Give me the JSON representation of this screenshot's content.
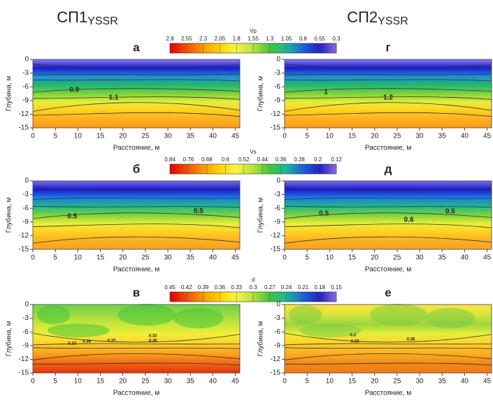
{
  "figure": {
    "column_titles": [
      {
        "main": "СП1",
        "sub": "YSSR"
      },
      {
        "main": "СП2",
        "sub": "YSSR"
      }
    ],
    "colorbars": [
      {
        "label": "Vp",
        "ticks": [
          2.8,
          2.55,
          2.3,
          2.05,
          1.8,
          1.55,
          1.3,
          1.05,
          0.8,
          0.55,
          0.3
        ]
      },
      {
        "label": "Vs",
        "ticks": [
          0.84,
          0.76,
          0.68,
          0.6,
          0.52,
          0.44,
          0.36,
          0.28,
          0.2,
          0.12
        ]
      },
      {
        "label": "d",
        "ticks": [
          0.45,
          0.42,
          0.39,
          0.36,
          0.33,
          0.3,
          0.27,
          0.24,
          0.21,
          0.18,
          0.15
        ]
      }
    ]
  },
  "chart_data": [
    {
      "type": "contour",
      "title": "а",
      "field": "Vp",
      "xlabel": "Расстояние, м",
      "ylabel": "Глубина, м",
      "xlim": [
        0,
        46
      ],
      "xticks": [
        0,
        5,
        10,
        15,
        20,
        25,
        30,
        35,
        40,
        45
      ],
      "ylim": [
        -15,
        0
      ],
      "yticks": [
        0,
        -3,
        -6,
        -9,
        -12,
        -15
      ],
      "contour_labels": [
        0.9,
        1.1
      ]
    },
    {
      "type": "contour",
      "title": "г",
      "field": "Vp",
      "xlabel": "Расстояние, м",
      "ylabel": "Глубина, м",
      "xlim": [
        0,
        46
      ],
      "xticks": [
        0,
        5,
        10,
        15,
        20,
        25,
        30,
        35,
        40,
        45
      ],
      "ylim": [
        -15,
        0
      ],
      "yticks": [
        0,
        -3,
        -6,
        -9,
        -12,
        -15
      ],
      "contour_labels": [
        1,
        1.2
      ]
    },
    {
      "type": "contour",
      "title": "б",
      "field": "Vs",
      "xlabel": "Расстояние, м",
      "ylabel": "Глубина, м",
      "xlim": [
        0,
        46
      ],
      "xticks": [
        0,
        5,
        10,
        15,
        20,
        25,
        30,
        35,
        40,
        45
      ],
      "ylim": [
        -15,
        0
      ],
      "yticks": [
        0,
        -3,
        -6,
        -9,
        -12,
        -15
      ],
      "contour_labels": [
        0.5,
        0.5
      ]
    },
    {
      "type": "contour",
      "title": "д",
      "field": "Vs",
      "xlabel": "Расстояние, м",
      "ylabel": "Глубина, м",
      "xlim": [
        0,
        46
      ],
      "xticks": [
        0,
        5,
        10,
        15,
        20,
        25,
        30,
        35,
        40,
        45
      ],
      "ylim": [
        -15,
        0
      ],
      "yticks": [
        0,
        -3,
        -6,
        -9,
        -12,
        -15
      ],
      "contour_labels": [
        0.5,
        0.5,
        0.6
      ]
    },
    {
      "type": "contour",
      "title": "в",
      "field": "d",
      "xlabel": "Расстояние, м",
      "ylabel": "Глубина, м",
      "xlim": [
        0,
        46
      ],
      "xticks": [
        0,
        5,
        10,
        15,
        20,
        25,
        30,
        35,
        40,
        45
      ],
      "ylim": [
        -15,
        0
      ],
      "yticks": [
        0,
        -3,
        -6,
        -9,
        -12,
        -15
      ],
      "contour_labels": [
        0.33,
        0.36,
        0.37,
        0.33,
        0.36
      ]
    },
    {
      "type": "contour",
      "title": "е",
      "field": "d",
      "xlabel": "Расстояние, м",
      "ylabel": "Глубина, м",
      "xlim": [
        0,
        46
      ],
      "xticks": [
        0,
        5,
        10,
        15,
        20,
        25,
        30,
        35,
        40,
        45
      ],
      "ylim": [
        -15,
        0
      ],
      "yticks": [
        0,
        -3,
        -6,
        -9,
        -12,
        -15
      ],
      "contour_labels": [
        0.3,
        0.33,
        0.36
      ]
    }
  ]
}
